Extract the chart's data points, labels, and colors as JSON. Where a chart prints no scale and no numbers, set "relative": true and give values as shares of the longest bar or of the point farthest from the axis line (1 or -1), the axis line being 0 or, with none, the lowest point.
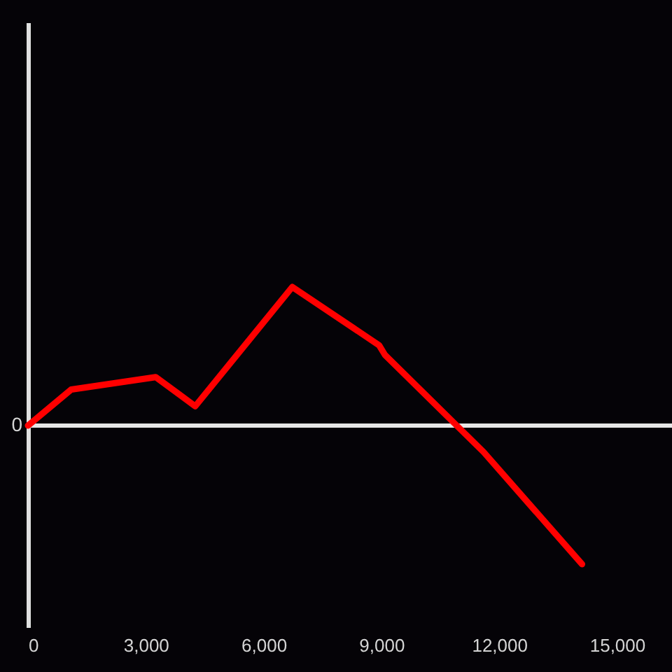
{
  "chart_data": {
    "type": "line",
    "relative": true,
    "x": [
      0,
      1100,
      3250,
      4260,
      6730,
      8940,
      9090,
      11600,
      14110
    ],
    "series": [
      {
        "color": "#ff0000",
        "values": [
          0,
          0.26,
          0.35,
          0.14,
          1,
          0.58,
          0.51,
          -0.19,
          -1
        ]
      }
    ],
    "xlim": [
      0,
      16400
    ],
    "xticks": [
      0,
      {
        "value": 3000,
        "label": "3,000"
      },
      {
        "value": 6000,
        "label": "6,000"
      },
      {
        "value": 9000,
        "label": "9,000"
      },
      {
        "value": 12000,
        "label": "12,000"
      },
      {
        "value": 15000,
        "label": "15,000"
      }
    ],
    "ref_lines": [
      {
        "axis": "y",
        "value": 0,
        "label": "0",
        "color": "#e6e6e6"
      }
    ]
  }
}
